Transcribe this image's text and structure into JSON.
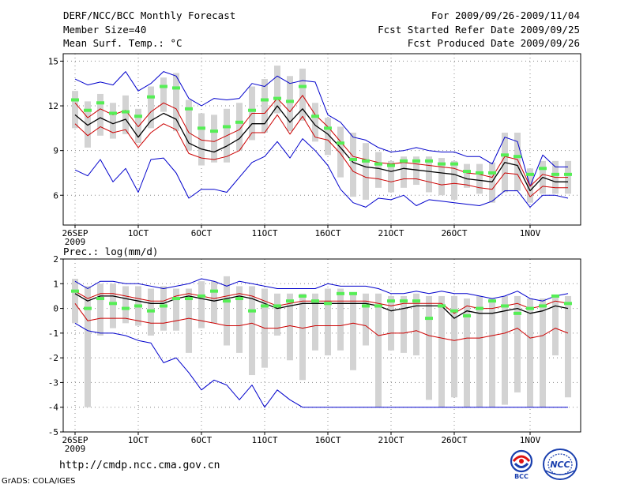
{
  "header": {
    "title": "DERF/NCC/BCC Monthly Forecast",
    "member_size": "Member Size=40",
    "variable": "Mean Surf. Temp.: °C",
    "period": "For 2009/09/26-2009/11/04",
    "fcst_started": "Fcst Started Refer Date 2009/09/25",
    "fcst_produced": "Fcst Produced Date 2009/09/26"
  },
  "footer": {
    "url": "http://cmdp.ncc.cma.gov.cn",
    "credit": "GrADS: COLA/IGES",
    "logo_bcc": "BCC",
    "logo_ncc": "NCC"
  },
  "colors": {
    "mean": "#000000",
    "spread": "#cc0000",
    "range": "#0000cc",
    "box": "#d3d3d3",
    "marker": "#55ee55",
    "grid": "#888888"
  },
  "chart_data": [
    {
      "type": "line",
      "title": "Mean Surf. Temp.: °C",
      "ylim": [
        4,
        15.5
      ],
      "yticks": [
        6,
        9,
        12,
        15
      ],
      "xlim": [
        0,
        40
      ],
      "xticks": [
        {
          "x": 0,
          "label": "26SEP",
          "sub": "2009"
        },
        {
          "x": 5,
          "label": "1OCT"
        },
        {
          "x": 10,
          "label": "6OCT"
        },
        {
          "x": 15,
          "label": "11OCT"
        },
        {
          "x": 20,
          "label": "16OCT"
        },
        {
          "x": 25,
          "label": "21OCT"
        },
        {
          "x": 30,
          "label": "26OCT"
        },
        {
          "x": 36,
          "label": "1NOV"
        }
      ],
      "series": [
        {
          "name": "ensemble max",
          "role": "range",
          "values": [
            13.8,
            13.4,
            13.6,
            13.4,
            14.3,
            13,
            13.5,
            14.3,
            14,
            12.5,
            12,
            12.5,
            12.4,
            12.5,
            13.5,
            13.3,
            14,
            13.5,
            13.7,
            13.6,
            11.4,
            10.9,
            9.9,
            9.7,
            9.2,
            8.9,
            9,
            9.2,
            9,
            8.9,
            8.9,
            8.6,
            8.6,
            8.1,
            9.9,
            9.6,
            6.6,
            8.7,
            7.9,
            7.9
          ]
        },
        {
          "name": "upper spread",
          "role": "spread",
          "values": [
            12.2,
            11.2,
            11.8,
            11.4,
            11.7,
            10.6,
            11.6,
            12.2,
            11.8,
            10.2,
            9.7,
            9.6,
            10,
            10.4,
            11.5,
            11.5,
            12.5,
            11.6,
            12.7,
            11.4,
            10.6,
            9.6,
            8.6,
            8.4,
            8.2,
            8.1,
            8.2,
            8.1,
            8,
            7.9,
            7.8,
            7.5,
            7.4,
            7.2,
            8.6,
            8.4,
            6.6,
            7.4,
            7.2,
            7.2
          ]
        },
        {
          "name": "ensemble mean",
          "role": "mean",
          "values": [
            11.4,
            10.7,
            11.2,
            10.8,
            11.1,
            9.9,
            11,
            11.5,
            11.1,
            9.5,
            9.1,
            8.9,
            9.3,
            9.8,
            10.8,
            10.8,
            12,
            10.9,
            11.8,
            10.7,
            10.1,
            9.2,
            8.2,
            7.9,
            7.8,
            7.6,
            7.8,
            7.7,
            7.6,
            7.5,
            7.4,
            7.1,
            7,
            6.9,
            8.2,
            8,
            6.3,
            7.2,
            6.9,
            6.9
          ]
        },
        {
          "name": "lower spread",
          "role": "spread",
          "values": [
            10.8,
            10,
            10.6,
            10.2,
            10.4,
            9.2,
            10.2,
            10.8,
            10.4,
            8.8,
            8.5,
            8.4,
            8.6,
            9,
            10.2,
            10.2,
            11.4,
            10.1,
            11.3,
            9.9,
            9.7,
            8.8,
            7.6,
            7.2,
            7.1,
            6.9,
            7.1,
            7.1,
            6.9,
            6.7,
            6.8,
            6.7,
            6.5,
            6.4,
            7.5,
            7.4,
            5.9,
            6.6,
            6.5,
            6.5
          ]
        },
        {
          "name": "ensemble min",
          "role": "range",
          "values": [
            7.7,
            7.3,
            8.4,
            6.9,
            7.8,
            6.2,
            8.4,
            8.5,
            7.5,
            5.8,
            6.4,
            6.4,
            6.2,
            7.2,
            8.2,
            8.6,
            9.6,
            8.5,
            9.8,
            9,
            8,
            6.4,
            5.5,
            5.2,
            5.8,
            5.7,
            6,
            5.3,
            5.7,
            5.6,
            5.5,
            5.4,
            5.3,
            5.6,
            6.3,
            6.3,
            5.2,
            6,
            6,
            5.8
          ]
        },
        {
          "name": "climate box top",
          "role": "box",
          "values": [
            13,
            12.3,
            12.8,
            12.2,
            12.7,
            11.8,
            13.3,
            13.9,
            14.2,
            12.4,
            11.5,
            11.4,
            11.8,
            12.2,
            13.3,
            13.8,
            14.7,
            14,
            14.5,
            12.2,
            11.2,
            10.6,
            10.2,
            9.5,
            8.9,
            8.3,
            8.6,
            8.6,
            8.6,
            8.5,
            8.3,
            8.1,
            8.1,
            8.2,
            10.2,
            10.2,
            7.8,
            8.3,
            8.3,
            8.3
          ]
        },
        {
          "name": "climate box bottom",
          "role": "box",
          "values": [
            10.5,
            9.2,
            10,
            9.8,
            10.1,
            9.5,
            10.5,
            11.6,
            10.3,
            9,
            8,
            8.2,
            8.2,
            9,
            9.7,
            10.2,
            11.5,
            10.3,
            11,
            9.6,
            8.7,
            7.2,
            5.9,
            5.7,
            6.5,
            6.2,
            6.5,
            6.7,
            6.2,
            6,
            5.7,
            6.5,
            6.1,
            5.5,
            6.2,
            6.3,
            5.5,
            6.1,
            6.1,
            6.1
          ]
        },
        {
          "name": "observed marker",
          "role": "marker",
          "values": [
            12.4,
            11.7,
            12.2,
            11.5,
            11.6,
            11.3,
            12.6,
            13.3,
            13.2,
            11.8,
            10.5,
            10.3,
            10.6,
            10.9,
            11.7,
            12.4,
            12.5,
            12.3,
            13.3,
            11.3,
            10.5,
            9.5,
            8.4,
            8.3,
            8.1,
            8,
            8.3,
            8.3,
            8.3,
            8.1,
            8.1,
            7.6,
            7.5,
            7.5,
            8.7,
            8.6,
            7.4,
            7.8,
            7.4,
            7.4
          ]
        }
      ]
    },
    {
      "type": "line",
      "title": "Prec.: log(mm/d)",
      "ylim": [
        -5,
        2
      ],
      "yticks": [
        -5,
        -4,
        -3,
        -2,
        -1,
        0,
        1,
        2
      ],
      "xlim": [
        0,
        40
      ],
      "xticks": [
        {
          "x": 0,
          "label": "26SEP",
          "sub": "2009"
        },
        {
          "x": 5,
          "label": "1OCT"
        },
        {
          "x": 10,
          "label": "6OCT"
        },
        {
          "x": 15,
          "label": "11OCT"
        },
        {
          "x": 20,
          "label": "16OCT"
        },
        {
          "x": 25,
          "label": "21OCT"
        },
        {
          "x": 30,
          "label": "26OCT"
        },
        {
          "x": 36,
          "label": "1NOV"
        }
      ],
      "series": [
        {
          "name": "ensemble max",
          "role": "range",
          "values": [
            1.1,
            0.8,
            1.1,
            1.1,
            1,
            1,
            0.9,
            0.8,
            0.9,
            1,
            1.2,
            1.1,
            0.9,
            1.1,
            1,
            0.9,
            0.8,
            0.8,
            0.8,
            0.8,
            1,
            0.9,
            0.9,
            0.9,
            0.8,
            0.6,
            0.6,
            0.7,
            0.6,
            0.7,
            0.6,
            0.6,
            0.5,
            0.4,
            0.5,
            0.7,
            0.4,
            0.3,
            0.5,
            0.6
          ]
        },
        {
          "name": "upper spread",
          "role": "spread",
          "values": [
            0.7,
            0.4,
            0.6,
            0.6,
            0.5,
            0.4,
            0.3,
            0.3,
            0.5,
            0.6,
            0.5,
            0.4,
            0.5,
            0.6,
            0.5,
            0.3,
            0.1,
            0.2,
            0.3,
            0.3,
            0.3,
            0.3,
            0.3,
            0.3,
            0.2,
            0.1,
            0.2,
            0.2,
            0.2,
            0.2,
            -0.2,
            0.1,
            0,
            0,
            0.1,
            0.2,
            0,
            0.1,
            0.3,
            0.2
          ]
        },
        {
          "name": "ensemble mean",
          "role": "mean",
          "values": [
            0.6,
            0.3,
            0.5,
            0.5,
            0.4,
            0.3,
            0.2,
            0.2,
            0.4,
            0.5,
            0.4,
            0.3,
            0.4,
            0.5,
            0.4,
            0.2,
            0,
            0.1,
            0.2,
            0.2,
            0.2,
            0.2,
            0.2,
            0.2,
            0.1,
            -0.1,
            0,
            0.1,
            0.1,
            0.1,
            -0.4,
            -0.1,
            -0.2,
            -0.2,
            -0.1,
            0,
            -0.2,
            -0.1,
            0.1,
            0
          ]
        },
        {
          "name": "lower spread",
          "role": "spread",
          "values": [
            0.2,
            -0.5,
            -0.4,
            -0.4,
            -0.4,
            -0.5,
            -0.6,
            -0.6,
            -0.5,
            -0.4,
            -0.5,
            -0.6,
            -0.7,
            -0.7,
            -0.6,
            -0.8,
            -0.8,
            -0.7,
            -0.8,
            -0.7,
            -0.7,
            -0.7,
            -0.6,
            -0.7,
            -1.1,
            -1,
            -1,
            -0.9,
            -1.1,
            -1.2,
            -1.3,
            -1.2,
            -1.2,
            -1.1,
            -1,
            -0.8,
            -1.2,
            -1.1,
            -0.8,
            -1
          ]
        },
        {
          "name": "ensemble min",
          "role": "range",
          "values": [
            -0.6,
            -0.9,
            -1,
            -1,
            -1.1,
            -1.3,
            -1.4,
            -2.2,
            -2,
            -2.6,
            -3.3,
            -2.9,
            -3.1,
            -3.7,
            -3.1,
            -4,
            -3.3,
            -3.7,
            -4,
            -4,
            -4,
            -4,
            -4,
            -4,
            -4,
            -4,
            -4,
            -4,
            -4,
            -4,
            -4,
            -4,
            -4,
            -4,
            -4,
            -4,
            -4,
            -4,
            -4,
            -4
          ]
        },
        {
          "name": "climate box top",
          "role": "box",
          "values": [
            1.2,
            0.9,
            1,
            1,
            0.9,
            0.9,
            0.8,
            0.9,
            0.8,
            0.8,
            1.1,
            1.1,
            1.3,
            0.9,
            0.9,
            0.8,
            0.6,
            0.6,
            0.6,
            0.6,
            0.8,
            0.8,
            0.6,
            0.6,
            0.6,
            0.5,
            0.5,
            0.6,
            0.5,
            0.5,
            0.5,
            0.4,
            0.5,
            0.4,
            0.5,
            0.5,
            0.4,
            0.4,
            0.5,
            0.5
          ]
        },
        {
          "name": "climate box bottom",
          "role": "box",
          "values": [
            -0.6,
            -4,
            -1.1,
            -0.8,
            -0.6,
            -0.7,
            -1.1,
            -0.9,
            -0.9,
            -1.8,
            -0.8,
            -0.6,
            -1.5,
            -1.8,
            -2.7,
            -2.4,
            -1.1,
            -2.1,
            -2.9,
            -1.7,
            -1.9,
            -1.7,
            -2.5,
            -1.5,
            -4,
            -1.7,
            -1.8,
            -1.9,
            -3.7,
            -4,
            -3.6,
            -4,
            -4,
            -4,
            -3.9,
            -3.4,
            -4,
            -4,
            -1.9,
            -3.6
          ]
        },
        {
          "name": "observed marker",
          "role": "marker",
          "values": [
            0.7,
            0,
            0.4,
            0.2,
            0,
            0.1,
            -0.1,
            0.1,
            0.4,
            0.4,
            0.5,
            0.7,
            0.3,
            0.4,
            -0.1,
            0.1,
            0.1,
            0.3,
            0.5,
            0.3,
            0.2,
            0.6,
            0.6,
            0.1,
            0.1,
            0.3,
            0.3,
            0.3,
            -0.4,
            0.1,
            -0.1,
            -0.3,
            0,
            0.3,
            0.1,
            -0.2,
            0,
            0.1,
            0.5,
            0.2
          ]
        }
      ]
    }
  ]
}
